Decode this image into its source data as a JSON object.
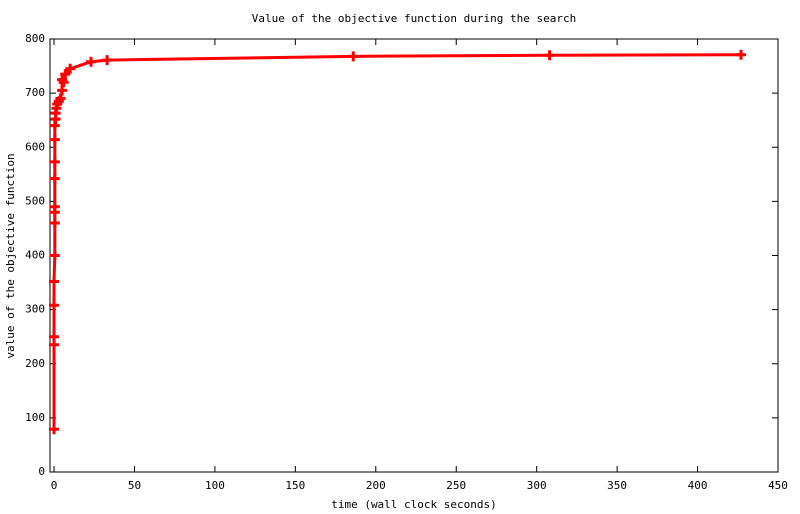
{
  "chart_data": {
    "type": "line",
    "title": "Value of the objective function during the search",
    "x_label": "time (wall clock seconds)",
    "y_label": "value of the objective function",
    "x": [
      0,
      0,
      0,
      0,
      0,
      0.5,
      0.5,
      0.5,
      0.5,
      0.5,
      0.5,
      0.5,
      0.5,
      1,
      1,
      1.5,
      2,
      3,
      4,
      5,
      5,
      6,
      7,
      10,
      23,
      33,
      186,
      308,
      427
    ],
    "series": [
      {
        "name": null,
        "color": "#ff0000",
        "values": [
          79,
          235,
          250,
          308,
          352,
          400,
          460,
          480,
          490,
          542,
          573,
          614,
          640,
          652,
          663,
          672,
          680,
          685,
          690,
          705,
          725,
          720,
          735,
          745,
          758,
          761,
          768,
          770,
          771
        ]
      }
    ],
    "xlim": [
      -2.5,
      450
    ],
    "xticks": [
      0,
      50,
      100,
      150,
      200,
      250,
      300,
      350,
      400,
      450
    ],
    "ylim": [
      0,
      800
    ],
    "yticks": [
      0,
      100,
      200,
      300,
      400,
      500,
      600,
      700,
      800
    ],
    "grid": false
  }
}
